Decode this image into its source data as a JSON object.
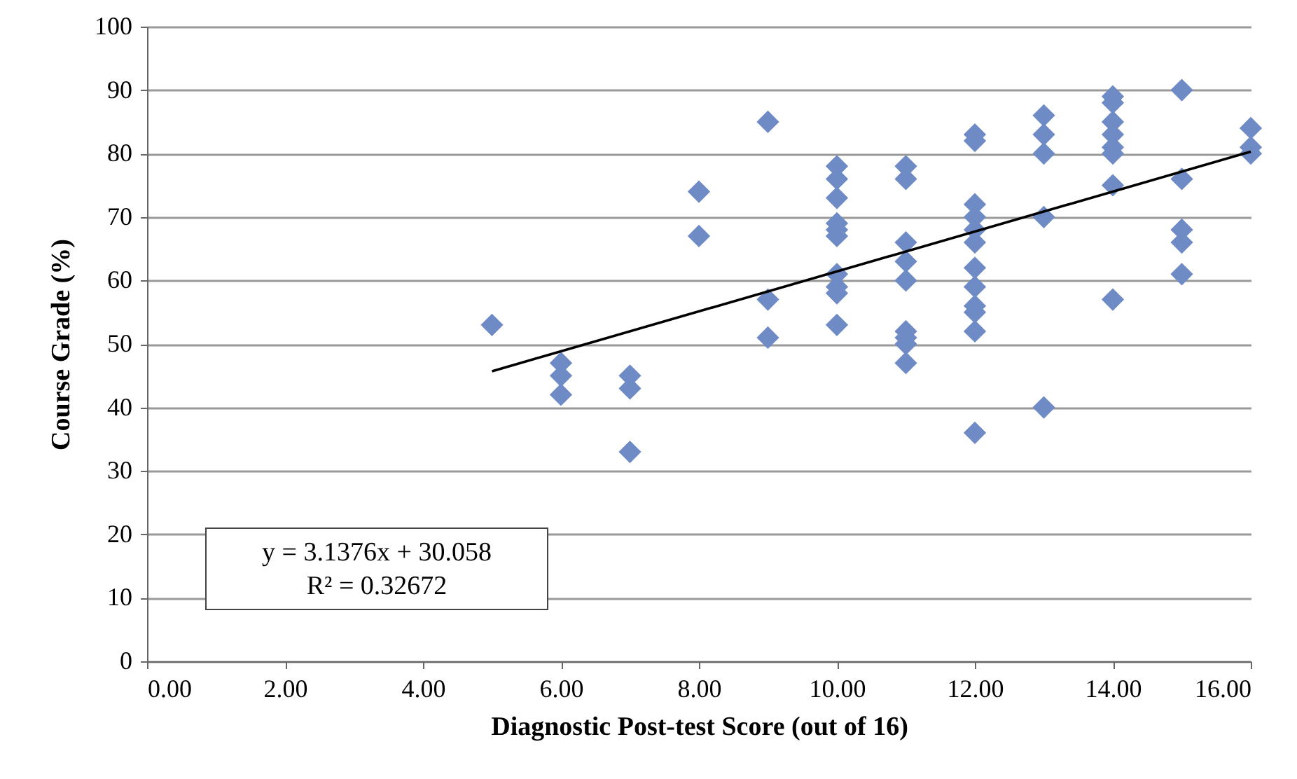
{
  "chart_data": {
    "type": "scatter",
    "xlabel": "Diagnostic Post-test Score (out of 16)",
    "ylabel": "Course Grade (%)",
    "xlim": [
      0,
      16
    ],
    "ylim": [
      0,
      100
    ],
    "xticks": [
      {
        "value": 0,
        "label": "0.00"
      },
      {
        "value": 2,
        "label": "2.00"
      },
      {
        "value": 4,
        "label": "4.00"
      },
      {
        "value": 6,
        "label": "6.00"
      },
      {
        "value": 8,
        "label": "8.00"
      },
      {
        "value": 10,
        "label": "10.00"
      },
      {
        "value": 12,
        "label": "12.00"
      },
      {
        "value": 14,
        "label": "14.00"
      },
      {
        "value": 16,
        "label": "16.00"
      }
    ],
    "yticks": [
      0,
      10,
      20,
      30,
      40,
      50,
      60,
      70,
      80,
      90,
      100
    ],
    "grid": "y",
    "annotations": [
      "y = 3.1376x + 30.058",
      "R² = 0.32672"
    ],
    "series": [
      {
        "color": "#6f8bc6",
        "marker": "diamond",
        "x": [
          5,
          6,
          6,
          6,
          7,
          7,
          7,
          8,
          8,
          9,
          9,
          9,
          10,
          10,
          10,
          10,
          10,
          10,
          10,
          10,
          10,
          10,
          11,
          11,
          11,
          11,
          11,
          11,
          11,
          11,
          11,
          12,
          12,
          12,
          12,
          12,
          12,
          12,
          12,
          12,
          12,
          12,
          12,
          13,
          13,
          13,
          13,
          13,
          14,
          14,
          14,
          14,
          14,
          14,
          14,
          14,
          15,
          15,
          15,
          15,
          15,
          16,
          16,
          16
        ],
        "values": [
          53,
          47,
          45,
          42,
          45,
          43,
          33,
          74,
          67,
          85,
          57,
          51,
          78,
          76,
          73,
          69,
          68,
          67,
          61,
          59,
          58,
          53,
          78,
          76,
          66,
          63,
          60,
          52,
          51,
          50,
          47,
          83,
          82,
          72,
          70,
          68,
          66,
          62,
          59,
          56,
          55,
          52,
          36,
          86,
          83,
          80,
          70,
          40,
          89,
          88,
          85,
          83,
          81,
          80,
          75,
          57,
          90,
          76,
          68,
          66,
          61,
          84,
          81,
          80
        ]
      },
      {
        "type": "line",
        "marker": "none",
        "color": "#000000",
        "x": [
          5,
          16
        ],
        "values": [
          45.7,
          80.3
        ]
      }
    ]
  }
}
